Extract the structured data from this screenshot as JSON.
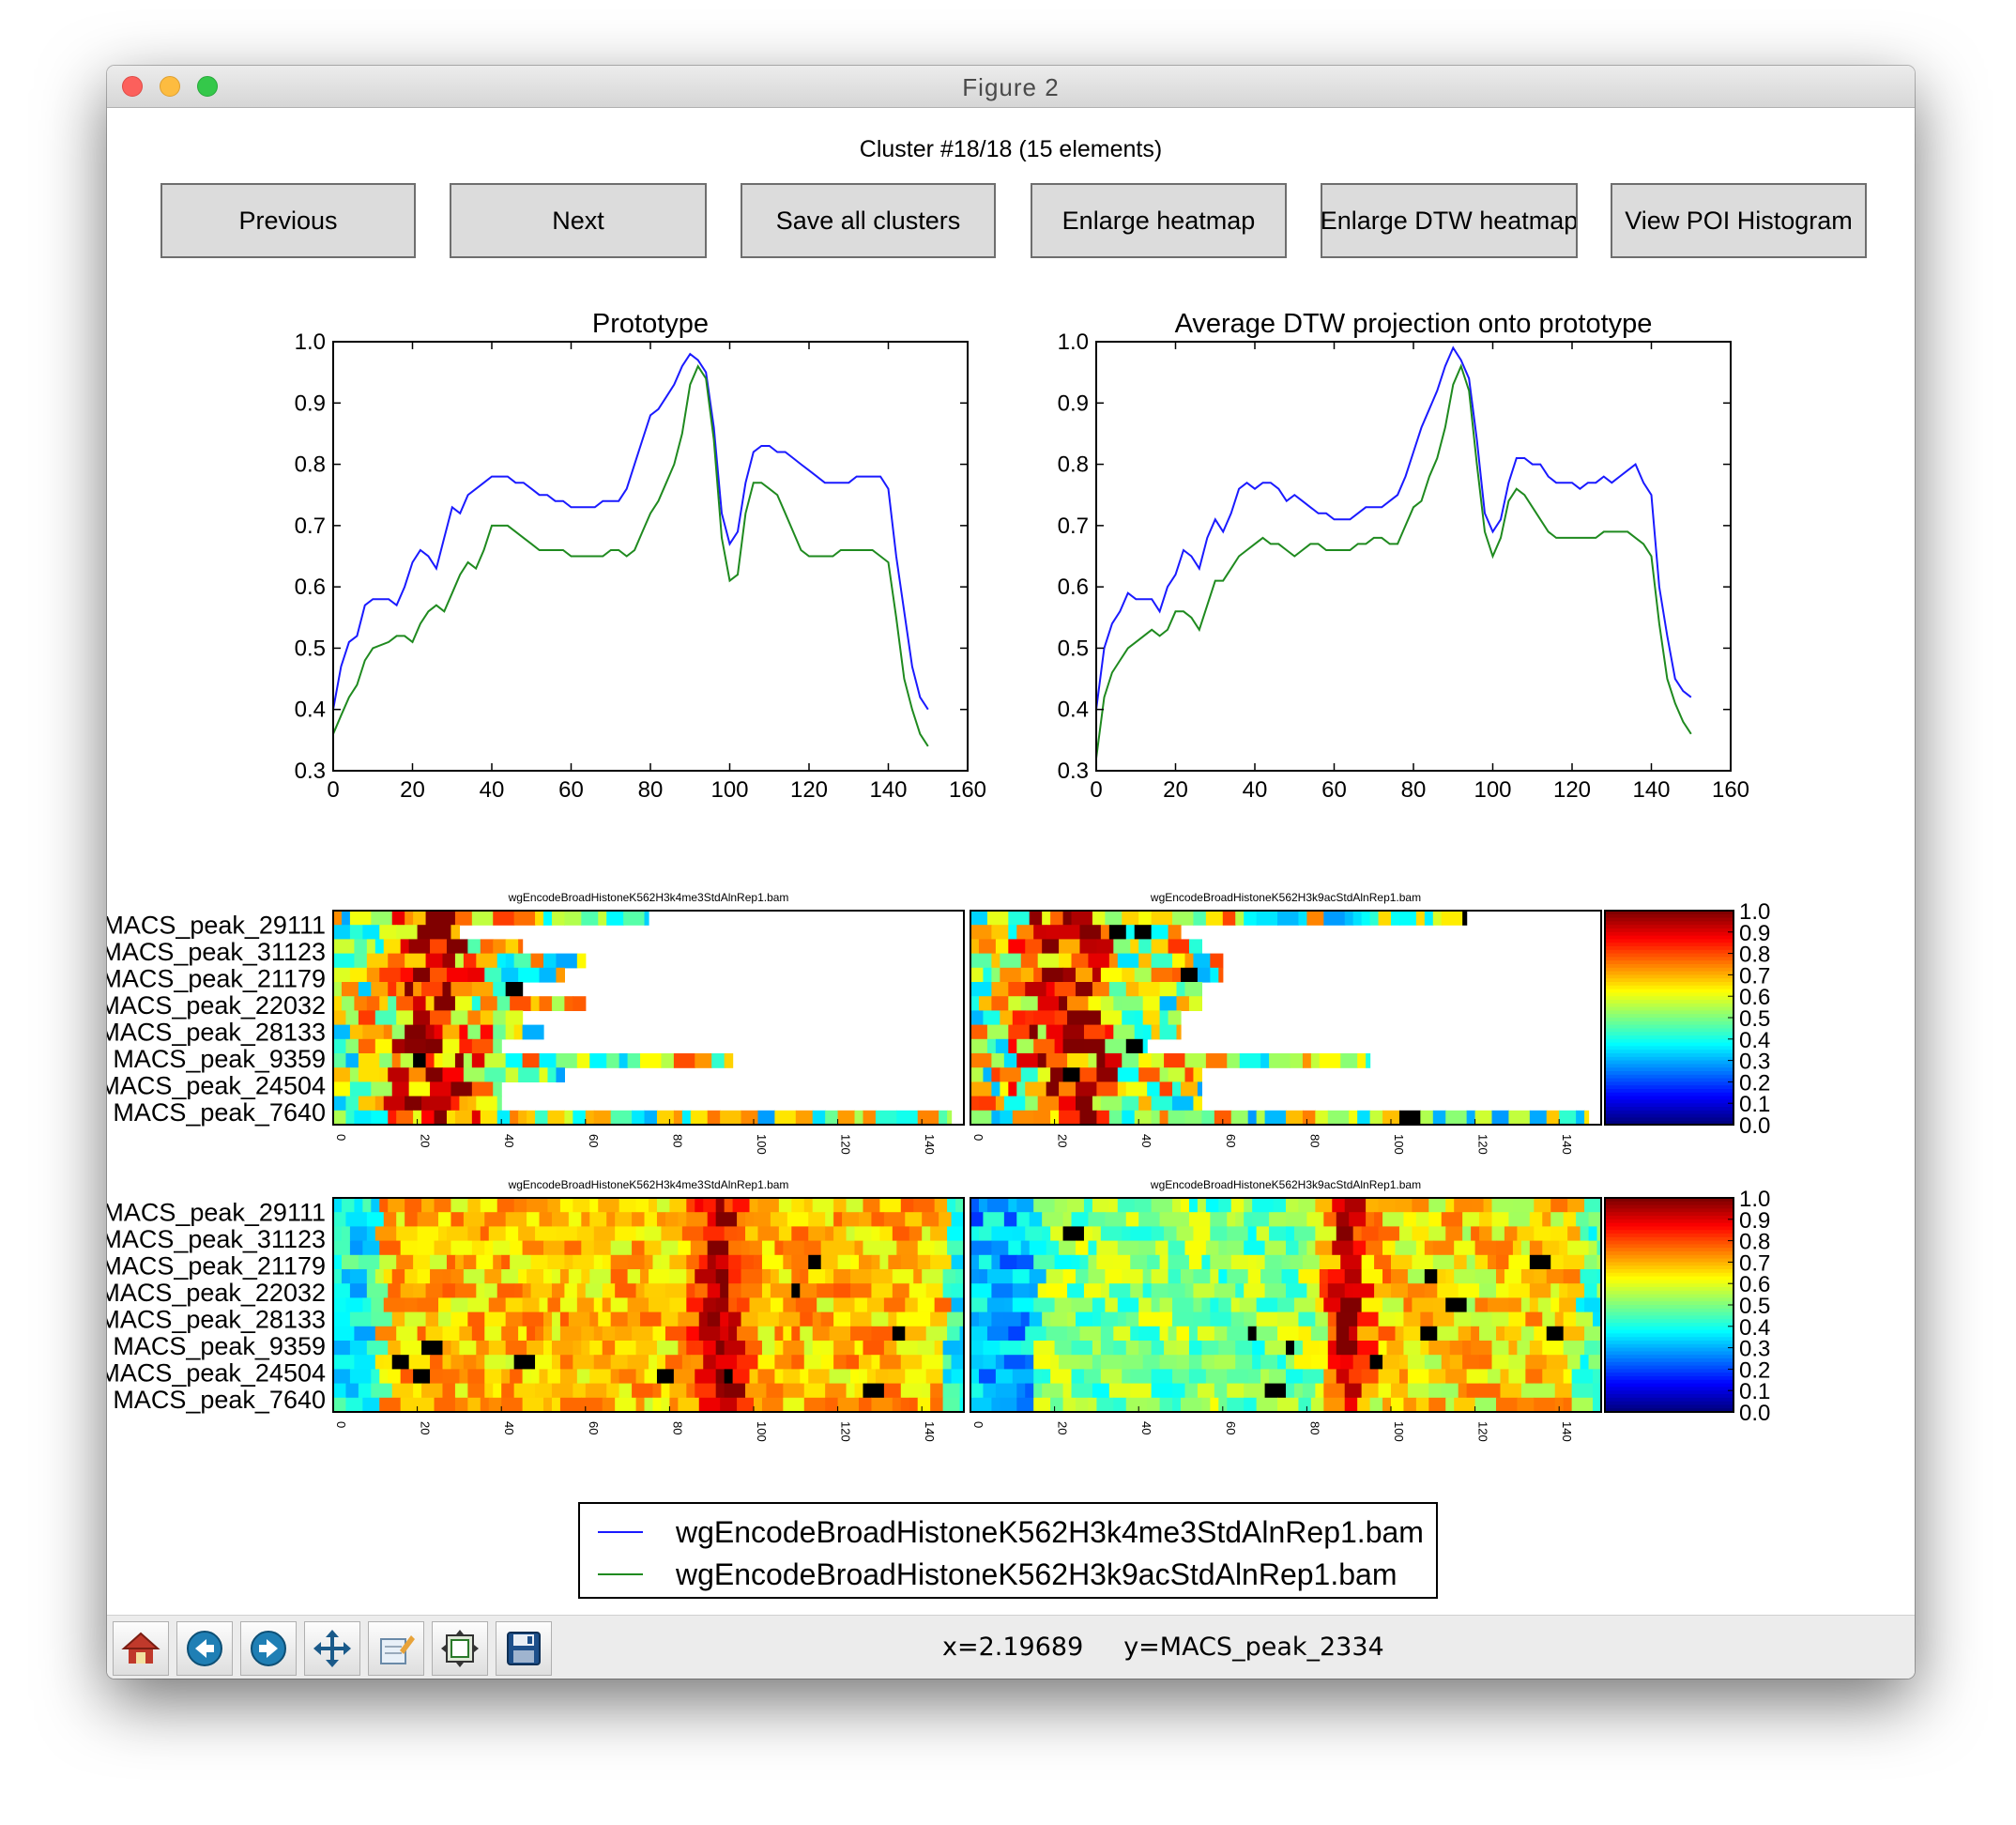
{
  "window": {
    "title": "Figure 2"
  },
  "header": {
    "cluster_title": "Cluster #18/18 (15 elements)"
  },
  "buttons": {
    "previous": "Previous",
    "next": "Next",
    "save_all": "Save all clusters",
    "enlarge_heatmap": "Enlarge heatmap",
    "enlarge_dtw": "Enlarge DTW heatmap",
    "view_poi": "View POI Histogram"
  },
  "toolbar": {
    "icons": [
      "home-icon",
      "back-arrow-icon",
      "forward-arrow-icon",
      "pan-icon",
      "zoom-edit-icon",
      "subplot-config-icon",
      "save-icon"
    ],
    "x_readout": "x=2.19689",
    "y_readout": "y=MACS_peak_2334"
  },
  "colors": {
    "series1": "#1a1aff",
    "series2": "#1f8a1f"
  },
  "chart_data": [
    {
      "type": "line",
      "title": "Prototype",
      "xlim": [
        0,
        160
      ],
      "ylim": [
        0.3,
        1.0
      ],
      "xticks": [
        "0",
        "20",
        "40",
        "60",
        "80",
        "100",
        "120",
        "140",
        "160"
      ],
      "yticks": [
        "0.3",
        "0.4",
        "0.5",
        "0.6",
        "0.7",
        "0.8",
        "0.9",
        "1.0"
      ],
      "x": [
        0,
        2,
        4,
        6,
        8,
        10,
        14,
        16,
        18,
        20,
        22,
        24,
        26,
        28,
        30,
        32,
        34,
        36,
        38,
        40,
        42,
        44,
        46,
        48,
        50,
        52,
        54,
        56,
        58,
        60,
        62,
        64,
        66,
        68,
        70,
        72,
        74,
        76,
        78,
        80,
        82,
        84,
        86,
        88,
        90,
        92,
        94,
        96,
        98,
        100,
        102,
        104,
        106,
        108,
        110,
        112,
        114,
        116,
        118,
        120,
        122,
        124,
        126,
        128,
        130,
        132,
        134,
        136,
        138,
        140,
        142,
        144,
        146,
        148,
        150
      ],
      "series": [
        {
          "name": "wgEncodeBroadHistoneK562H3k4me3StdAlnRep1.bam",
          "color": "#1a1aff",
          "values": [
            0.4,
            0.47,
            0.51,
            0.52,
            0.57,
            0.58,
            0.58,
            0.57,
            0.6,
            0.64,
            0.66,
            0.65,
            0.63,
            0.68,
            0.73,
            0.72,
            0.75,
            0.76,
            0.77,
            0.78,
            0.78,
            0.78,
            0.77,
            0.77,
            0.76,
            0.75,
            0.75,
            0.74,
            0.74,
            0.73,
            0.73,
            0.73,
            0.73,
            0.74,
            0.74,
            0.74,
            0.76,
            0.8,
            0.84,
            0.88,
            0.89,
            0.91,
            0.93,
            0.96,
            0.98,
            0.97,
            0.95,
            0.86,
            0.72,
            0.67,
            0.69,
            0.77,
            0.82,
            0.83,
            0.83,
            0.82,
            0.82,
            0.81,
            0.8,
            0.79,
            0.78,
            0.77,
            0.77,
            0.77,
            0.77,
            0.78,
            0.78,
            0.78,
            0.78,
            0.76,
            0.65,
            0.56,
            0.47,
            0.42,
            0.4
          ]
        },
        {
          "name": "wgEncodeBroadHistoneK562H3k9acStdAlnRep1.bam",
          "color": "#1f8a1f",
          "values": [
            0.36,
            0.39,
            0.42,
            0.44,
            0.48,
            0.5,
            0.51,
            0.52,
            0.52,
            0.51,
            0.54,
            0.56,
            0.57,
            0.56,
            0.59,
            0.62,
            0.64,
            0.63,
            0.66,
            0.7,
            0.7,
            0.7,
            0.69,
            0.68,
            0.67,
            0.66,
            0.66,
            0.66,
            0.66,
            0.65,
            0.65,
            0.65,
            0.65,
            0.65,
            0.66,
            0.66,
            0.65,
            0.66,
            0.69,
            0.72,
            0.74,
            0.77,
            0.8,
            0.85,
            0.93,
            0.96,
            0.94,
            0.84,
            0.68,
            0.61,
            0.62,
            0.72,
            0.77,
            0.77,
            0.76,
            0.75,
            0.72,
            0.69,
            0.66,
            0.65,
            0.65,
            0.65,
            0.65,
            0.66,
            0.66,
            0.66,
            0.66,
            0.66,
            0.65,
            0.64,
            0.55,
            0.45,
            0.4,
            0.36,
            0.34
          ]
        }
      ]
    },
    {
      "type": "line",
      "title": "Average DTW projection onto prototype",
      "xlim": [
        0,
        160
      ],
      "ylim": [
        0.3,
        1.0
      ],
      "xticks": [
        "0",
        "20",
        "40",
        "60",
        "80",
        "100",
        "120",
        "140",
        "160"
      ],
      "yticks": [
        "0.3",
        "0.4",
        "0.5",
        "0.6",
        "0.7",
        "0.8",
        "0.9",
        "1.0"
      ],
      "x": [
        0,
        2,
        4,
        6,
        8,
        10,
        14,
        16,
        18,
        20,
        22,
        24,
        26,
        28,
        30,
        32,
        34,
        36,
        38,
        40,
        42,
        44,
        46,
        48,
        50,
        52,
        54,
        56,
        58,
        60,
        62,
        64,
        66,
        68,
        70,
        72,
        74,
        76,
        78,
        80,
        82,
        84,
        86,
        88,
        90,
        92,
        94,
        96,
        98,
        100,
        102,
        104,
        106,
        108,
        110,
        112,
        114,
        116,
        118,
        120,
        122,
        124,
        126,
        128,
        130,
        132,
        134,
        136,
        138,
        140,
        142,
        144,
        146,
        148,
        150
      ],
      "series": [
        {
          "name": "wgEncodeBroadHistoneK562H3k4me3StdAlnRep1.bam",
          "color": "#1a1aff",
          "values": [
            0.4,
            0.5,
            0.54,
            0.56,
            0.59,
            0.58,
            0.58,
            0.56,
            0.6,
            0.62,
            0.66,
            0.65,
            0.63,
            0.68,
            0.71,
            0.69,
            0.72,
            0.76,
            0.77,
            0.76,
            0.77,
            0.77,
            0.76,
            0.74,
            0.75,
            0.74,
            0.73,
            0.72,
            0.72,
            0.71,
            0.71,
            0.71,
            0.72,
            0.73,
            0.73,
            0.73,
            0.74,
            0.75,
            0.78,
            0.82,
            0.86,
            0.89,
            0.92,
            0.96,
            0.99,
            0.97,
            0.94,
            0.84,
            0.72,
            0.69,
            0.71,
            0.77,
            0.81,
            0.81,
            0.8,
            0.8,
            0.78,
            0.77,
            0.77,
            0.77,
            0.76,
            0.77,
            0.77,
            0.78,
            0.77,
            0.78,
            0.79,
            0.8,
            0.77,
            0.75,
            0.6,
            0.52,
            0.45,
            0.43,
            0.42
          ]
        },
        {
          "name": "wgEncodeBroadHistoneK562H3k9acStdAlnRep1.bam",
          "color": "#1f8a1f",
          "values": [
            0.32,
            0.42,
            0.46,
            0.48,
            0.5,
            0.51,
            0.53,
            0.52,
            0.53,
            0.56,
            0.56,
            0.55,
            0.53,
            0.57,
            0.61,
            0.61,
            0.63,
            0.65,
            0.66,
            0.67,
            0.68,
            0.67,
            0.67,
            0.66,
            0.65,
            0.66,
            0.67,
            0.67,
            0.66,
            0.66,
            0.66,
            0.66,
            0.67,
            0.67,
            0.68,
            0.68,
            0.67,
            0.67,
            0.7,
            0.73,
            0.74,
            0.78,
            0.81,
            0.86,
            0.93,
            0.96,
            0.92,
            0.8,
            0.69,
            0.65,
            0.68,
            0.74,
            0.76,
            0.75,
            0.73,
            0.71,
            0.69,
            0.68,
            0.68,
            0.68,
            0.68,
            0.68,
            0.68,
            0.69,
            0.69,
            0.69,
            0.69,
            0.68,
            0.67,
            0.65,
            0.54,
            0.45,
            0.41,
            0.38,
            0.36
          ]
        }
      ]
    },
    {
      "type": "heatmap",
      "title": "wgEncodeBroadHistoneK562H3k4me3StdAlnRep1.bam",
      "row_labels": [
        "MACS_peak_29111",
        "MACS_peak_31123",
        "MACS_peak_21179",
        "MACS_peak_22032",
        "MACS_peak_28133",
        "MACS_peak_9359",
        "MACS_peak_24504",
        "MACS_peak_7640"
      ],
      "xticks": [
        "0",
        "20",
        "40",
        "60",
        "80",
        "100",
        "120",
        "140"
      ],
      "rows": 15,
      "row_lengths": [
        75,
        30,
        45,
        60,
        55,
        45,
        60,
        45,
        50,
        40,
        95,
        55,
        40,
        40,
        147
      ],
      "profile": "early_peak"
    },
    {
      "type": "heatmap",
      "title": "wgEncodeBroadHistoneK562H3k9acStdAlnRep1.bam",
      "row_labels": [],
      "xticks": [
        "0",
        "20",
        "40",
        "60",
        "80",
        "100",
        "120",
        "140"
      ],
      "rows": 15,
      "row_lengths": [
        118,
        50,
        55,
        60,
        60,
        55,
        55,
        50,
        50,
        42,
        95,
        55,
        55,
        55,
        147
      ],
      "profile": "early_peak"
    },
    {
      "type": "heatmap",
      "title": "wgEncodeBroadHistoneK562H3k4me3StdAlnRep1.bam",
      "row_labels": [
        "MACS_peak_29111",
        "MACS_peak_31123",
        "MACS_peak_21179",
        "MACS_peak_22032",
        "MACS_peak_28133",
        "MACS_peak_9359",
        "MACS_peak_24504",
        "MACS_peak_7640"
      ],
      "xticks": [
        "0",
        "20",
        "40",
        "60",
        "80",
        "100",
        "120",
        "140"
      ],
      "rows": 15,
      "row_lengths": [
        150,
        150,
        150,
        150,
        150,
        150,
        150,
        150,
        150,
        150,
        150,
        150,
        150,
        150,
        150
      ],
      "profile": "central_peak"
    },
    {
      "type": "heatmap",
      "title": "wgEncodeBroadHistoneK562H3k9acStdAlnRep1.bam",
      "row_labels": [],
      "xticks": [
        "0",
        "20",
        "40",
        "60",
        "80",
        "100",
        "120",
        "140"
      ],
      "rows": 15,
      "row_lengths": [
        150,
        150,
        150,
        150,
        150,
        150,
        150,
        150,
        150,
        150,
        150,
        150,
        150,
        150,
        150
      ],
      "profile": "central_peak_cool"
    },
    {
      "type": "colorbar",
      "ticks": [
        "0.0",
        "0.1",
        "0.2",
        "0.3",
        "0.4",
        "0.5",
        "0.6",
        "0.7",
        "0.8",
        "0.9",
        "1.0"
      ]
    }
  ],
  "legend": {
    "entries": [
      "wgEncodeBroadHistoneK562H3k4me3StdAlnRep1.bam",
      "wgEncodeBroadHistoneK562H3k9acStdAlnRep1.bam"
    ]
  }
}
